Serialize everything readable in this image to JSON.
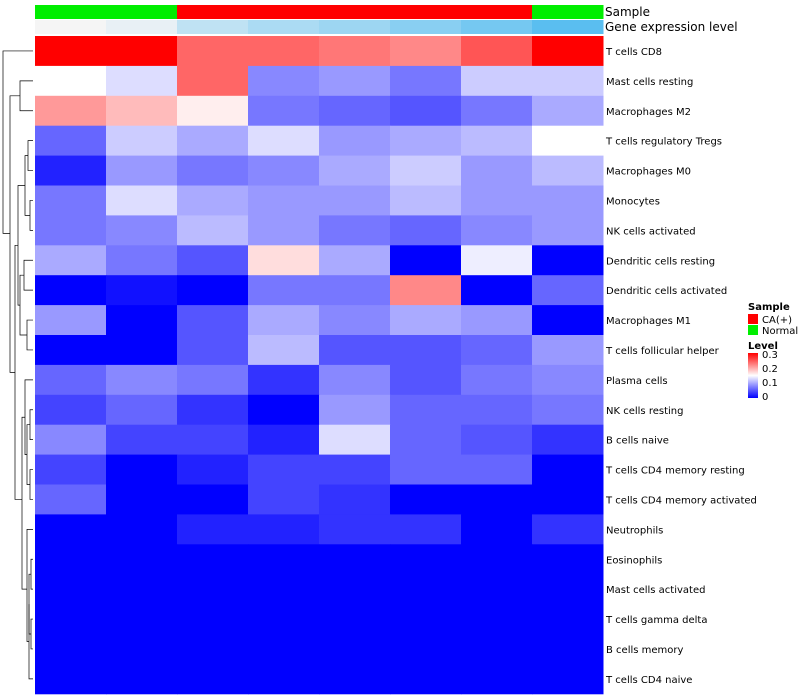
{
  "chart_data": {
    "type": "heatmap",
    "column_annotations": [
      {
        "label": "Sample",
        "values": [
          "Normal",
          "Normal",
          "CA(+)",
          "CA(+)",
          "CA(+)",
          "CA(+)",
          "CA(+)",
          "Normal"
        ]
      },
      {
        "label": "Gene expression level",
        "values": [
          0.0,
          0.02,
          0.08,
          0.11,
          0.13,
          0.16,
          0.19,
          0.23
        ]
      }
    ],
    "rows": [
      "T cells CD8",
      "Mast cells resting",
      "Macrophages M2",
      "T cells regulatory  Tregs",
      "Macrophages M0",
      "Monocytes",
      "NK cells activated",
      "Dendritic cells resting",
      "Dendritic cells activated",
      "Macrophages M1",
      "T cells follicular helper",
      "Plasma cells",
      "NK cells resting",
      "B cells naive",
      "T cells CD4 memory resting",
      "T cells CD4 memory activated",
      "Neutrophils",
      "Eosinophils",
      "Mast cells activated",
      "T cells gamma delta",
      "B cells memory",
      "T cells CD4 naive"
    ],
    "values": [
      [
        0.3,
        0.3,
        0.24,
        0.24,
        0.23,
        0.22,
        0.25,
        0.3
      ],
      [
        0.15,
        0.13,
        0.24,
        0.08,
        0.09,
        0.07,
        0.12,
        0.12
      ],
      [
        0.21,
        0.19,
        0.16,
        0.07,
        0.06,
        0.05,
        0.07,
        0.1
      ],
      [
        0.06,
        0.12,
        0.1,
        0.13,
        0.09,
        0.1,
        0.11,
        0.15
      ],
      [
        0.02,
        0.09,
        0.07,
        0.08,
        0.1,
        0.12,
        0.09,
        0.11
      ],
      [
        0.07,
        0.13,
        0.1,
        0.09,
        0.09,
        0.11,
        0.09,
        0.09
      ],
      [
        0.07,
        0.08,
        0.11,
        0.09,
        0.07,
        0.06,
        0.08,
        0.09
      ],
      [
        0.1,
        0.07,
        0.05,
        0.17,
        0.1,
        0.0,
        0.14,
        0.0
      ],
      [
        0.0,
        0.01,
        0.0,
        0.07,
        0.07,
        0.22,
        0.0,
        0.06
      ],
      [
        0.09,
        0.0,
        0.05,
        0.1,
        0.08,
        0.1,
        0.09,
        0.0
      ],
      [
        0.0,
        0.0,
        0.05,
        0.11,
        0.05,
        0.05,
        0.06,
        0.09
      ],
      [
        0.06,
        0.08,
        0.07,
        0.03,
        0.08,
        0.05,
        0.07,
        0.08
      ],
      [
        0.04,
        0.06,
        0.03,
        0.0,
        0.09,
        0.06,
        0.06,
        0.07
      ],
      [
        0.08,
        0.04,
        0.04,
        0.02,
        0.13,
        0.06,
        0.05,
        0.03
      ],
      [
        0.04,
        0.0,
        0.02,
        0.04,
        0.04,
        0.06,
        0.06,
        0.0
      ],
      [
        0.06,
        0.0,
        0.0,
        0.04,
        0.03,
        0.0,
        0.0,
        0.0
      ],
      [
        0.0,
        0.0,
        0.02,
        0.02,
        0.03,
        0.03,
        0.0,
        0.03
      ],
      [
        0.0,
        0.0,
        0.0,
        0.0,
        0.0,
        0.0,
        0.0,
        0.0
      ],
      [
        0.0,
        0.0,
        0.0,
        0.0,
        0.0,
        0.0,
        0.0,
        0.0
      ],
      [
        0.0,
        0.0,
        0.0,
        0.0,
        0.0,
        0.0,
        0.0,
        0.0
      ],
      [
        0.0,
        0.0,
        0.0,
        0.0,
        0.0,
        0.0,
        0.0,
        0.0
      ],
      [
        0.0,
        0.0,
        0.0,
        0.0,
        0.0,
        0.0,
        0.0,
        0.0
      ]
    ],
    "color_scale": {
      "min": 0,
      "mid": 0.15,
      "max": 0.3,
      "low": "#0000ff",
      "mid_color": "#ffffff",
      "high": "#ff0000"
    },
    "legend": {
      "sample": {
        "title": "Sample",
        "items": [
          {
            "label": "CA(+)",
            "color": "#ff0000"
          },
          {
            "label": "Normal",
            "color": "#00ee00"
          }
        ]
      },
      "level": {
        "title": "Level",
        "ticks": [
          "0.3",
          "0.2",
          "0.1",
          "0"
        ]
      }
    },
    "legend_position": "right",
    "dendrogram": "rows"
  }
}
